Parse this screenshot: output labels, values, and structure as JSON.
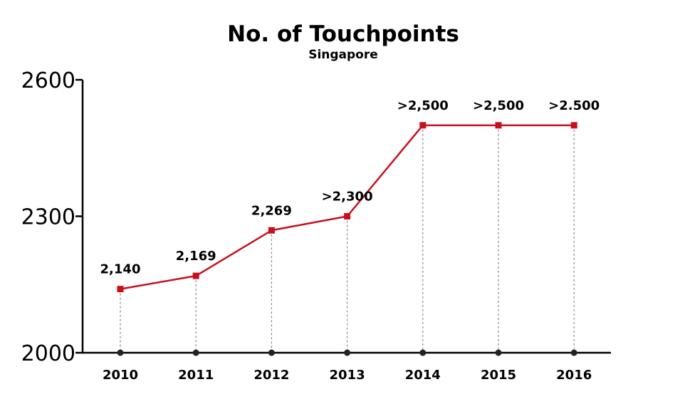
{
  "chart_data": {
    "type": "line",
    "title": "No. of Touchpoints",
    "subtitle": "Singapore",
    "xlabel": "",
    "ylabel": "",
    "categories": [
      "2010",
      "2011",
      "2012",
      "2013",
      "2014",
      "2015",
      "2016"
    ],
    "series": [
      {
        "values": [
          2140,
          2169,
          2269,
          2300,
          2500,
          2500,
          2500
        ],
        "data_labels": [
          "2,140",
          "2,169",
          "2,269",
          ">2,300",
          ">2,500",
          ">2,500",
          ">2.500"
        ],
        "color": "#c8101d",
        "marker": "square"
      }
    ],
    "ylim": [
      2000,
      2600
    ],
    "yticks": [
      "2000",
      "2300",
      "2600"
    ],
    "grid": false,
    "drop_lines": "dashed",
    "baseline_marker_color": "#222222",
    "axis_color": "#000000",
    "legend": "none"
  }
}
